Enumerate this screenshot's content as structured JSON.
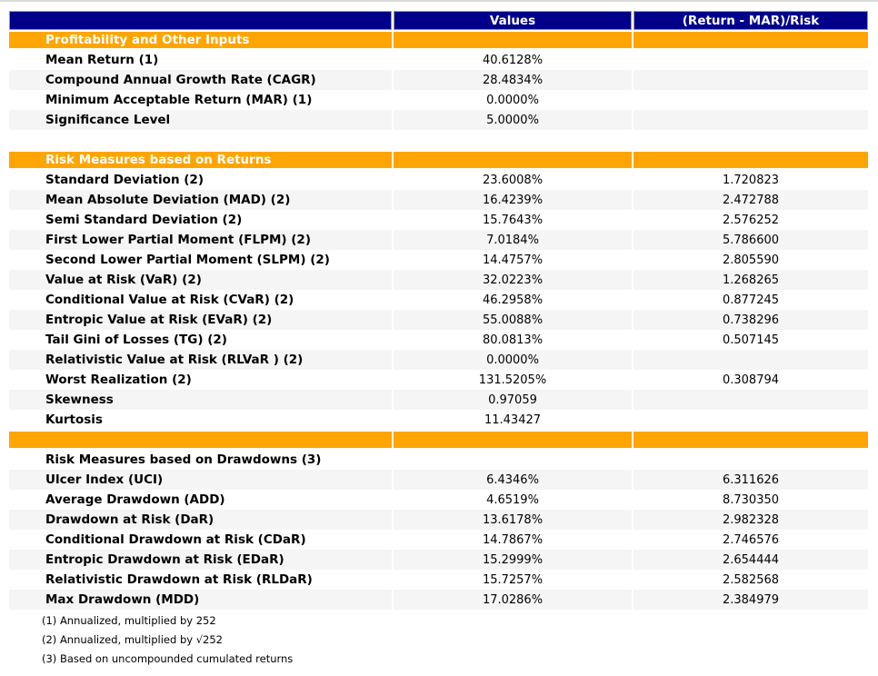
{
  "colors": {
    "navy": "#00008B",
    "orange": "#FFA500",
    "stripe": "#F5F5F5",
    "header_text": "#ffffff",
    "hairline": "#d9d9d9"
  },
  "chart_data": {
    "type": "table",
    "columns": [
      "",
      "Values",
      "(Return - MAR)/Risk"
    ],
    "rows": [
      {
        "type": "section",
        "label": "Profitability and Other Inputs",
        "value": "",
        "ratio": ""
      },
      {
        "type": "data",
        "label": "Mean Return (1)",
        "value": "40.6128%",
        "ratio": "",
        "striped": false
      },
      {
        "type": "data",
        "label": "Compound Annual Growth Rate (CAGR)",
        "value": "28.4834%",
        "ratio": "",
        "striped": true
      },
      {
        "type": "data",
        "label": "Minimum Acceptable Return (MAR) (1)",
        "value": "0.0000%",
        "ratio": "",
        "striped": false
      },
      {
        "type": "data",
        "label": "Significance Level",
        "value": "5.0000%",
        "ratio": "",
        "striped": true
      },
      {
        "type": "blank"
      },
      {
        "type": "section",
        "label": "Risk Measures based on Returns",
        "value": "",
        "ratio": ""
      },
      {
        "type": "data",
        "label": "Standard Deviation (2)",
        "value": "23.6008%",
        "ratio": "1.720823",
        "striped": false
      },
      {
        "type": "data",
        "label": "Mean Absolute Deviation (MAD) (2)",
        "value": "16.4239%",
        "ratio": "2.472788",
        "striped": true
      },
      {
        "type": "data",
        "label": "Semi Standard Deviation (2)",
        "value": "15.7643%",
        "ratio": "2.576252",
        "striped": false
      },
      {
        "type": "data",
        "label": "First Lower Partial Moment (FLPM) (2)",
        "value": "7.0184%",
        "ratio": "5.786600",
        "striped": true
      },
      {
        "type": "data",
        "label": "Second Lower Partial Moment (SLPM) (2)",
        "value": "14.4757%",
        "ratio": "2.805590",
        "striped": false
      },
      {
        "type": "data",
        "label": "Value at Risk (VaR) (2)",
        "value": "32.0223%",
        "ratio": "1.268265",
        "striped": true
      },
      {
        "type": "data",
        "label": "Conditional Value at Risk (CVaR) (2)",
        "value": "46.2958%",
        "ratio": "0.877245",
        "striped": false
      },
      {
        "type": "data",
        "label": "Entropic Value at Risk (EVaR) (2)",
        "value": "55.0088%",
        "ratio": "0.738296",
        "striped": true
      },
      {
        "type": "data",
        "label": "Tail Gini of Losses (TG) (2)",
        "value": "80.0813%",
        "ratio": "0.507145",
        "striped": false
      },
      {
        "type": "data",
        "label": "Relativistic Value at Risk (RLVaR ) (2)",
        "value": "0.0000%",
        "ratio": "",
        "striped": true
      },
      {
        "type": "data",
        "label": "Worst Realization (2)",
        "value": "131.5205%",
        "ratio": "0.308794",
        "striped": false
      },
      {
        "type": "data",
        "label": "Skewness",
        "value": "0.97059",
        "ratio": "",
        "striped": true
      },
      {
        "type": "data",
        "label": "Kurtosis",
        "value": "11.43427",
        "ratio": "",
        "striped": false
      },
      {
        "type": "section",
        "label": "",
        "value": "",
        "ratio": "",
        "gap_top": true
      },
      {
        "type": "subsection",
        "label": "Risk Measures based on Drawdowns (3)",
        "value": "",
        "ratio": "",
        "striped": false
      },
      {
        "type": "data",
        "label": "Ulcer Index (UCI)",
        "value": "6.4346%",
        "ratio": "6.311626",
        "striped": true
      },
      {
        "type": "data",
        "label": "Average Drawdown (ADD)",
        "value": "4.6519%",
        "ratio": "8.730350",
        "striped": false
      },
      {
        "type": "data",
        "label": "Drawdown at Risk (DaR)",
        "value": "13.6178%",
        "ratio": "2.982328",
        "striped": true
      },
      {
        "type": "data",
        "label": "Conditional Drawdown at Risk (CDaR)",
        "value": "14.7867%",
        "ratio": "2.746576",
        "striped": false
      },
      {
        "type": "data",
        "label": "Entropic Drawdown at Risk (EDaR)",
        "value": "15.2999%",
        "ratio": "2.654444",
        "striped": true
      },
      {
        "type": "data",
        "label": "Relativistic Drawdown at Risk (RLDaR)",
        "value": "15.7257%",
        "ratio": "2.582568",
        "striped": false
      },
      {
        "type": "data",
        "label": "Max Drawdown (MDD)",
        "value": "17.0286%",
        "ratio": "2.384979",
        "striped": true
      }
    ],
    "footnotes": [
      "(1) Annualized, multiplied by 252",
      "(2) Annualized, multiplied by √252",
      "(3) Based on uncompounded cumulated returns"
    ]
  }
}
